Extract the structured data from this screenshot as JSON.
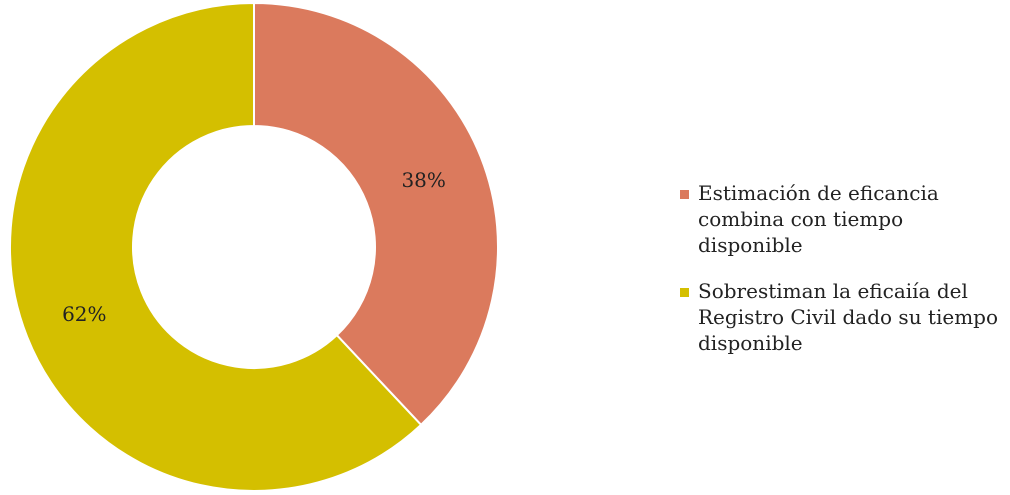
{
  "chart_data": {
    "type": "pie",
    "categories": [
      "Estimación de eficancia combina con tiempo disponible",
      "Sobrestiman la eficaiía del Registro Civil dado su tiempo disponible"
    ],
    "values": [
      38,
      62
    ],
    "value_labels": [
      "38%",
      "62%"
    ],
    "colors": [
      "#DB7A5D",
      "#D4BF00"
    ],
    "legend_position": "right",
    "donut": true
  }
}
